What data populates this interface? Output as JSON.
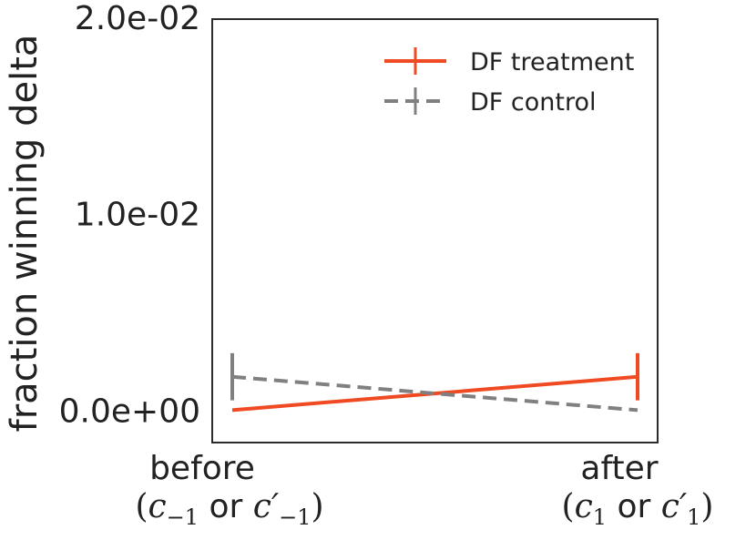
{
  "chart_data": {
    "type": "line",
    "title": "",
    "ylabel": "fraction winning delta",
    "xlabel": "",
    "categories": [
      "before",
      "after"
    ],
    "category_sublabels": [
      {
        "var": "c",
        "sub": "−1",
        "or": "or",
        "var2": "c′",
        "sub2": "−1"
      },
      {
        "var": "c",
        "sub": "1",
        "or": "or",
        "var2": "c′",
        "sub2": "1"
      }
    ],
    "ylim": [
      -0.00165,
      0.0199
    ],
    "yticks": [
      0.0,
      0.01,
      0.02
    ],
    "ytick_labels": [
      "0.0e+00",
      "1.0e-02",
      "2.0e-02"
    ],
    "grid": false,
    "legend_position": "top-right",
    "series": [
      {
        "name": "DF treatment",
        "color": "#f04a23",
        "dash": "solid",
        "values": [
          0.0,
          0.0017
        ],
        "errors": [
          null,
          0.0012
        ]
      },
      {
        "name": "DF control",
        "color": "#808080",
        "dash": "dashed",
        "values": [
          0.0017,
          0.0
        ],
        "errors": [
          0.0012,
          null
        ]
      }
    ]
  }
}
